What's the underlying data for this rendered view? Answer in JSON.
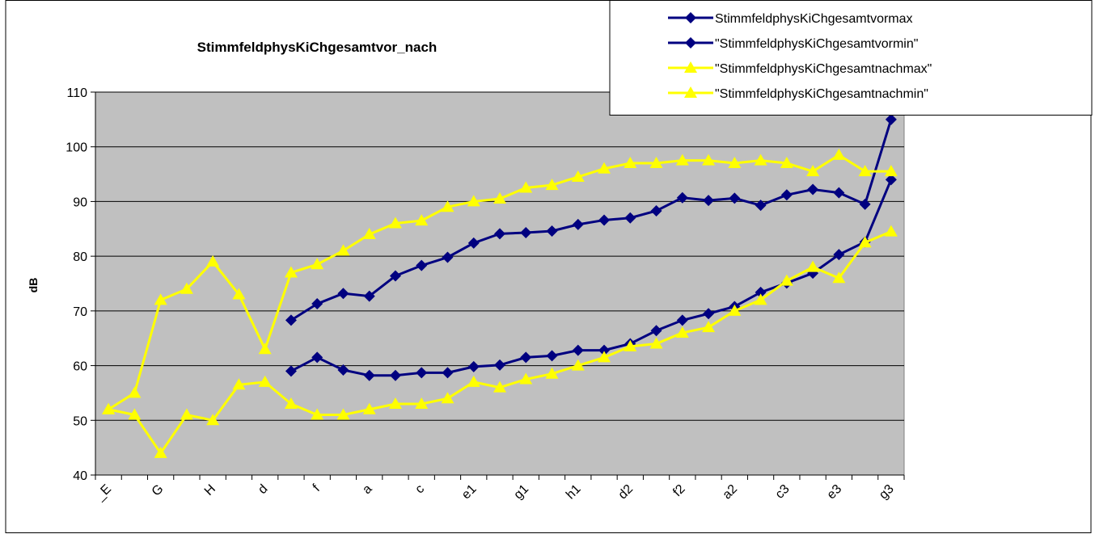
{
  "chart_data": {
    "type": "line",
    "title": "StimmfeldphysKiChgesamtvor_nach",
    "y_label": "dB",
    "categories": [
      "_E",
      null,
      "G",
      null,
      "H",
      null,
      "d",
      null,
      "f",
      null,
      "a",
      null,
      "c",
      null,
      "e1",
      null,
      "g1",
      null,
      "h1",
      null,
      "d2",
      null,
      "f2",
      null,
      "a2",
      null,
      "c3",
      null,
      "e3",
      null,
      "g3"
    ],
    "series": [
      {
        "name": "StimmfeldphysKiChgesamtvormax",
        "color": "#000080",
        "marker": "diamond",
        "values": [
          null,
          null,
          null,
          null,
          null,
          null,
          null,
          68.3,
          71.3,
          73.2,
          72.7,
          76.4,
          78.3,
          79.8,
          82.4,
          84.1,
          84.3,
          84.6,
          85.8,
          86.6,
          87,
          88.3,
          90.7,
          90.2,
          90.6,
          89.3,
          91.2,
          92.2,
          91.6,
          89.5,
          105
        ]
      },
      {
        "name": "\"StimmfeldphysKiChgesamtvormin\"",
        "color": "#000080",
        "marker": "diamond",
        "values": [
          null,
          null,
          null,
          null,
          null,
          null,
          null,
          59,
          61.5,
          59.2,
          58.2,
          58.2,
          58.7,
          58.7,
          59.8,
          60.1,
          61.5,
          61.8,
          62.8,
          62.8,
          64,
          66.4,
          68.3,
          69.5,
          70.8,
          73.4,
          75.1,
          76.9,
          80.3,
          82.6,
          94
        ]
      },
      {
        "name": "\"StimmfeldphysKiChgesamtnachmax\"",
        "color": "#ffff00",
        "marker": "triangle",
        "values": [
          52,
          55,
          72,
          74,
          79,
          73,
          63,
          77,
          78.5,
          81,
          84,
          86,
          86.5,
          89,
          90,
          90.5,
          92.5,
          93,
          94.5,
          96,
          97,
          97,
          97.5,
          97.5,
          97,
          97.5,
          97,
          95.5,
          98.5,
          95.5,
          95.5
        ]
      },
      {
        "name": "\"StimmfeldphysKiChgesamtnachmin\"",
        "color": "#ffff00",
        "marker": "triangle",
        "values": [
          52,
          51,
          44,
          51,
          50,
          56.5,
          57,
          53,
          51,
          51,
          52,
          53,
          53,
          54,
          57,
          56,
          57.5,
          58.5,
          60,
          61.5,
          63.5,
          64,
          66,
          67,
          70,
          72,
          75.5,
          78,
          76,
          82.5,
          84.5
        ]
      }
    ],
    "ylim": [
      40,
      110
    ],
    "yticks": [
      40,
      50,
      60,
      70,
      80,
      90,
      100,
      110
    ],
    "grid": true,
    "plot_background": "#c0c0c0",
    "legend": "top-right"
  }
}
